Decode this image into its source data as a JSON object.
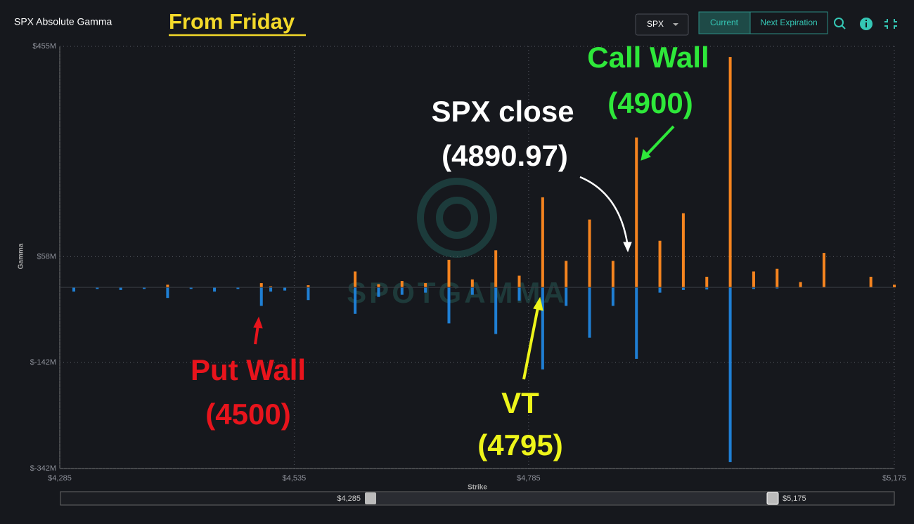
{
  "ui": {
    "panel_title": "SPX Absolute Gamma",
    "symbol": "SPX",
    "tabs": [
      "Current",
      "Next Expiration"
    ],
    "range_labels": [
      "$4,285",
      "$5,175"
    ],
    "watermark": "SPOTGAMMA"
  },
  "chart_data": {
    "type": "bar",
    "title": "From Friday",
    "x_label": "Strike",
    "y_label": "Gamma",
    "x": [
      4300,
      4325,
      4350,
      4375,
      4400,
      4425,
      4450,
      4475,
      4500,
      4510,
      4525,
      4550,
      4600,
      4625,
      4650,
      4675,
      4700,
      4725,
      4750,
      4775,
      4800,
      4825,
      4850,
      4875,
      4900,
      4925,
      4950,
      4975,
      5000,
      5025,
      5050,
      5075,
      5100,
      5150,
      5175
    ],
    "series": [
      {
        "name": "Calls",
        "color": "#f5841f",
        "values": [
          0,
          0,
          0,
          0,
          5,
          0,
          0,
          0,
          8,
          2,
          0,
          4,
          30,
          6,
          12,
          8,
          52,
          15,
          70,
          22,
          170,
          50,
          128,
          50,
          283,
          88,
          140,
          20,
          435,
          30,
          35,
          10,
          65,
          20,
          5
        ]
      },
      {
        "name": "Puts",
        "color": "#1f7fd4",
        "values": [
          -8,
          -3,
          -5,
          -3,
          -20,
          -3,
          -8,
          -3,
          -35,
          -8,
          -6,
          -24,
          -50,
          -18,
          -14,
          -10,
          -68,
          -14,
          -88,
          -25,
          -155,
          -35,
          -95,
          -35,
          -135,
          -10,
          -5,
          -4,
          -330,
          -3,
          -2,
          0,
          0,
          0,
          0
        ]
      }
    ],
    "xlim": [
      4285,
      5175
    ],
    "xticks": [
      {
        "value": 4285,
        "label": "$4,285"
      },
      {
        "value": 4535,
        "label": "$4,535"
      },
      {
        "value": 4785,
        "label": "$4,785"
      },
      {
        "value": 5175,
        "label": "$5,175"
      }
    ],
    "ylim": [
      -342,
      455
    ],
    "yticks": [
      {
        "value": 455,
        "label": "$455M"
      },
      {
        "value": 58,
        "label": "$58M"
      },
      {
        "value": -142,
        "label": "$-142M"
      },
      {
        "value": -342,
        "label": "$-342M"
      }
    ],
    "grid": true,
    "annotations": [
      {
        "lines": [
          "Call Wall",
          "(4900)"
        ],
        "color": "#2ee83a"
      },
      {
        "lines": [
          "SPX close",
          "(4890.97)"
        ],
        "color": "#ffffff"
      },
      {
        "lines": [
          "Put Wall",
          "(4500)"
        ],
        "color": "#e8141c"
      },
      {
        "lines": [
          "VT",
          "(4795)"
        ],
        "color": "#eef51a"
      }
    ]
  }
}
